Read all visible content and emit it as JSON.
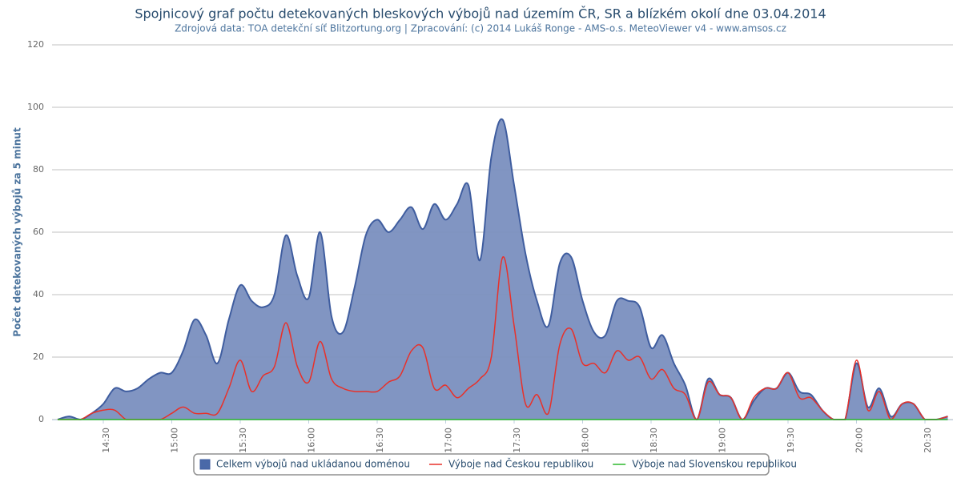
{
  "chart_data": {
    "type": "area",
    "title": "Spojnicový graf počtu detekovaných bleskových výbojů nad územím ČR, SR a blízkém okolí dne 03.04.2014",
    "subtitle": "Zdrojová data: TOA detekční síť Blitzortung.org | Zpracování: (c) 2014 Lukáš Ronge - AMS-o.s. MeteoViewer v4 - www.amsos.cz",
    "y_label": "Počet detekovaných výbojů za 5 minut",
    "categories": [
      null,
      null,
      null,
      null,
      "14:30",
      null,
      null,
      null,
      null,
      null,
      "15:00",
      null,
      null,
      null,
      null,
      null,
      "15:30",
      null,
      null,
      null,
      null,
      null,
      "16:00",
      null,
      null,
      null,
      null,
      null,
      "16:30",
      null,
      null,
      null,
      null,
      null,
      "17:00",
      null,
      null,
      null,
      null,
      null,
      "17:30",
      null,
      null,
      null,
      null,
      null,
      "18:00",
      null,
      null,
      null,
      null,
      null,
      "18:30",
      null,
      null,
      null,
      null,
      null,
      "19:00",
      null,
      null,
      null,
      null,
      null,
      "19:30",
      null,
      null,
      null,
      null,
      null,
      "20:00",
      null,
      null,
      null,
      null,
      null,
      "20:30",
      null,
      null
    ],
    "series": [
      {
        "name": "Celkem výbojů nad ukládanou doménou",
        "color": "#3f5d9f",
        "fill": "#7a8fbf",
        "values": [
          0,
          1,
          0,
          2,
          5,
          10,
          9,
          10,
          13,
          15,
          15,
          22,
          32,
          27,
          18,
          32,
          43,
          38,
          36,
          40,
          59,
          46,
          39,
          60,
          33,
          28,
          42,
          59,
          64,
          60,
          64,
          68,
          61,
          69,
          64,
          69,
          75,
          51,
          84,
          96,
          75,
          53,
          38,
          30,
          50,
          52,
          38,
          28,
          27,
          38,
          38,
          36,
          23,
          27,
          18,
          11,
          0,
          13,
          8,
          7,
          0,
          6,
          10,
          10,
          15,
          9,
          8,
          3,
          0,
          0,
          18,
          4,
          10,
          1,
          5,
          5,
          0,
          0,
          1
        ]
      },
      {
        "name": "Výboje nad Českou republikou",
        "color": "#e8312a",
        "values": [
          0,
          0,
          0,
          2,
          3,
          3,
          0,
          0,
          0,
          0,
          2,
          4,
          2,
          2,
          2,
          10,
          19,
          9,
          14,
          17,
          31,
          17,
          12,
          25,
          13,
          10,
          9,
          9,
          9,
          12,
          14,
          22,
          23,
          10,
          11,
          7,
          10,
          13,
          20,
          52,
          30,
          5,
          8,
          2,
          24,
          29,
          18,
          18,
          15,
          22,
          19,
          20,
          13,
          16,
          10,
          8,
          0,
          12,
          8,
          7,
          0,
          7,
          10,
          10,
          15,
          7,
          7,
          3,
          0,
          0,
          19,
          3,
          9,
          0,
          5,
          5,
          0,
          0,
          1
        ]
      },
      {
        "name": "Výboje nad Slovenskou republikou",
        "color": "#2eb82e",
        "values": [
          0,
          0,
          0,
          0,
          0,
          0,
          0,
          0,
          0,
          0,
          0,
          0,
          0,
          0,
          0,
          0,
          0,
          0,
          0,
          0,
          0,
          0,
          0,
          0,
          0,
          0,
          0,
          0,
          0,
          0,
          0,
          0,
          0,
          0,
          0,
          0,
          0,
          0,
          0,
          0,
          0,
          0,
          0,
          0,
          0,
          0,
          0,
          0,
          0,
          0,
          0,
          0,
          0,
          0,
          0,
          0,
          0,
          0,
          0,
          0,
          0,
          0,
          0,
          0,
          0,
          0,
          0,
          0,
          0,
          0,
          0,
          0,
          0,
          0,
          0,
          0,
          0,
          0,
          0
        ]
      }
    ],
    "ylim": [
      0,
      120
    ],
    "yticks": [
      0,
      20,
      40,
      60,
      80,
      100,
      120
    ],
    "grid": true,
    "legend": "bottom"
  }
}
